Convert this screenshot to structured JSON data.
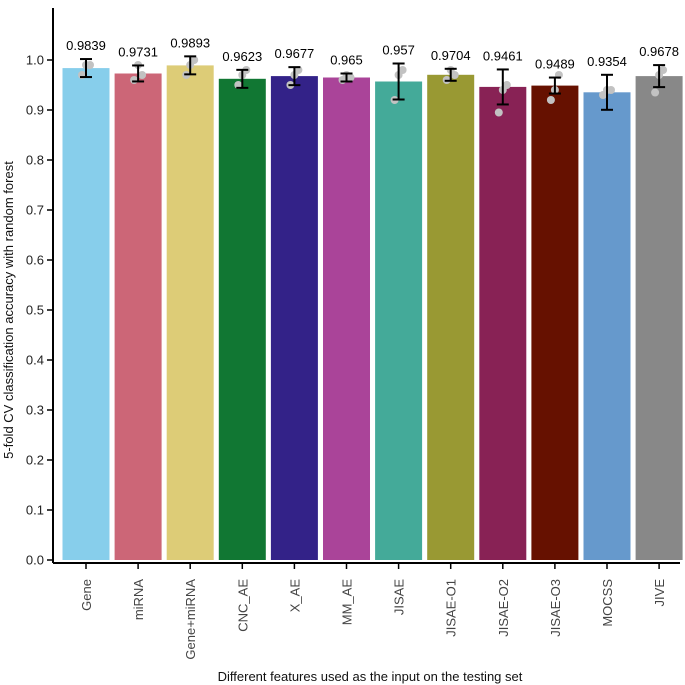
{
  "chart_data": {
    "type": "bar",
    "title": "",
    "xlabel": "Different features used as the input on the testing set",
    "ylabel": "5-fold CV classification accuracy with random forest",
    "ylim": [
      0,
      1.0
    ],
    "yticks": [
      "0.0",
      "0.1",
      "0.2",
      "0.3",
      "0.4",
      "0.5",
      "0.6",
      "0.7",
      "0.8",
      "0.9",
      "1.0"
    ],
    "grid": false,
    "legend": "none",
    "categories": [
      "Gene",
      "miRNA",
      "Gene+miRNA",
      "CNC_AE",
      "X_AE",
      "MM_AE",
      "JISAE",
      "JISAE-O1",
      "JISAE-O2",
      "JISAE-O3",
      "MOCSS",
      "JIVE"
    ],
    "values": [
      0.9839,
      0.9731,
      0.9893,
      0.9623,
      0.9677,
      0.965,
      0.957,
      0.9704,
      0.9461,
      0.9489,
      0.9354,
      0.9678
    ],
    "value_labels": [
      "0.9839",
      "0.9731",
      "0.9893",
      "0.9623",
      "0.9677",
      "0.965",
      "0.957",
      "0.9704",
      "0.9461",
      "0.9489",
      "0.9354",
      "0.9678"
    ],
    "errors": [
      0.018,
      0.016,
      0.018,
      0.018,
      0.018,
      0.008,
      0.036,
      0.012,
      0.035,
      0.016,
      0.035,
      0.022
    ],
    "points": [
      [
        0.97,
        0.99,
        0.99
      ],
      [
        0.96,
        0.99,
        0.97
      ],
      [
        0.97,
        0.99,
        1.0
      ],
      [
        0.95,
        0.97,
        0.98
      ],
      [
        0.95,
        0.97,
        0.98
      ],
      [
        0.96,
        0.97,
        0.965
      ],
      [
        0.92,
        0.97,
        0.98
      ],
      [
        0.96,
        0.98,
        0.97
      ],
      [
        0.895,
        0.94,
        0.95
      ],
      [
        0.92,
        0.94,
        0.97
      ],
      [
        0.93,
        0.94,
        0.94
      ],
      [
        0.935,
        0.97,
        0.98
      ]
    ],
    "colors": [
      "#87CEEB",
      "#CC6677",
      "#DDCC77",
      "#117733",
      "#332288",
      "#AA4499",
      "#44AA99",
      "#999933",
      "#882255",
      "#661100",
      "#6699CC",
      "#888888"
    ],
    "point_color": "#c2c2c2",
    "errorbar_color": "#000000",
    "axis_color": "#000000"
  }
}
